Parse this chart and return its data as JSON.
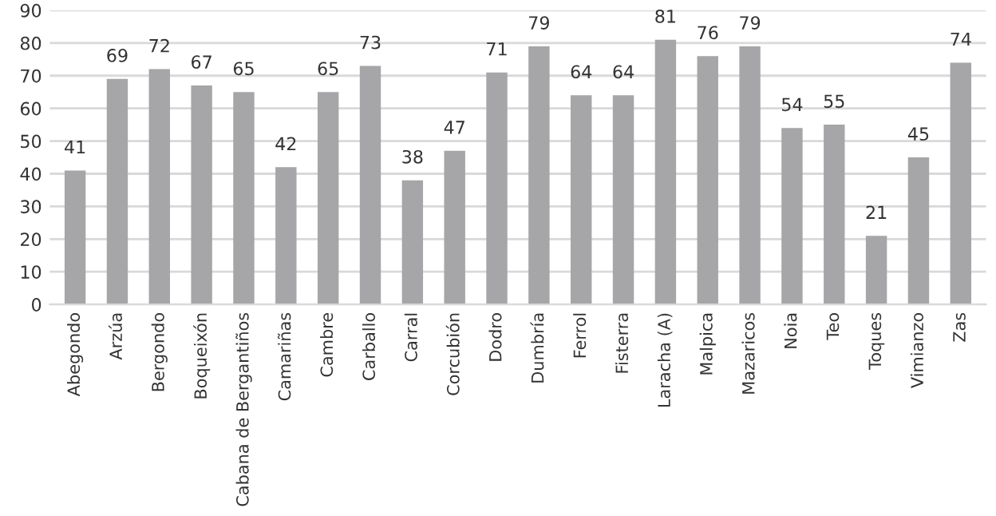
{
  "chart_data": {
    "type": "bar",
    "categories": [
      "Abegondo",
      "Arzúa",
      "Bergondo",
      "Boqueixón",
      "Cabana de Bergantiños",
      "Camariñas",
      "Cambre",
      "Carballo",
      "Carral",
      "Corcubión",
      "Dodro",
      "Dumbría",
      "Ferrol",
      "Fisterra",
      "Laracha (A)",
      "Malpica",
      "Mazaricos",
      "Noia",
      "Teo",
      "Toques",
      "Vimianzo",
      "Zas"
    ],
    "values": [
      41,
      69,
      72,
      67,
      65,
      42,
      65,
      73,
      38,
      47,
      71,
      79,
      64,
      64,
      81,
      76,
      79,
      54,
      55,
      21,
      45,
      74
    ],
    "color": "#a6a6a8",
    "ylim": [
      0,
      90
    ],
    "yticks": [
      0,
      10,
      20,
      30,
      40,
      50,
      60,
      70,
      80,
      90
    ],
    "grid": "y",
    "data_labels": true
  }
}
